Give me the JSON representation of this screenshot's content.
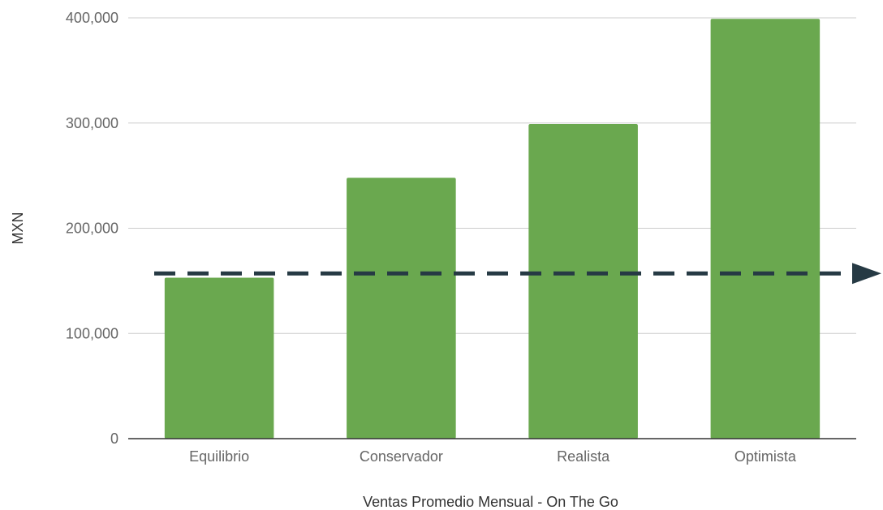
{
  "chart_data": {
    "type": "bar",
    "title": "",
    "xlabel": "Ventas Promedio Mensual  - On The Go",
    "ylabel": "MXN",
    "categories": [
      "Equilibrio",
      "Conservador",
      "Realista",
      "Optimista"
    ],
    "values": [
      153000,
      248000,
      299000,
      399000
    ],
    "ylim": [
      0,
      400000
    ],
    "yticks": [
      0,
      100000,
      200000,
      300000,
      400000
    ],
    "ytick_labels": [
      "0",
      "100,000",
      "200,000",
      "300,000",
      "400,000"
    ],
    "grid": true,
    "legend": "none",
    "bar_color": "#6aa84f",
    "reference_line": {
      "value": 157000,
      "style": "dashed-arrow",
      "color": "#263a44"
    }
  }
}
